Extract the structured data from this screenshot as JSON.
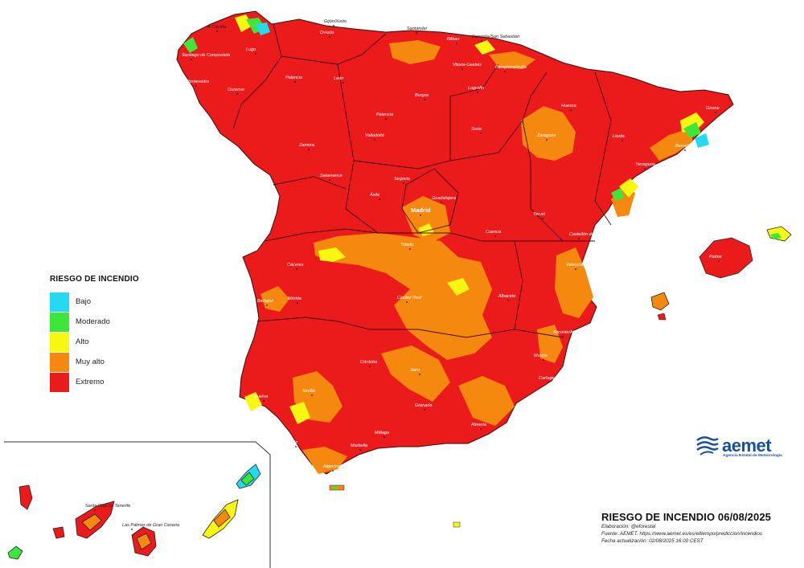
{
  "legend": {
    "title": "RIESGO DE INCENDIO",
    "levels": [
      {
        "label": "Bajo",
        "color": "#25d9f0"
      },
      {
        "label": "Moderado",
        "color": "#3ee63a"
      },
      {
        "label": "Alto",
        "color": "#f7f711"
      },
      {
        "label": "Muy alto",
        "color": "#f5890f"
      },
      {
        "label": "Extremo",
        "color": "#ec1b1b"
      }
    ]
  },
  "footer": {
    "title": "RIESGO DE INCENDIO 06/08/2025",
    "elaboracion": "Elaboración: @eforestal",
    "fuente": "Fuente: AEMET. https://www.aemet.es/es/eltiempo/prediccion/incendios",
    "actualizacion": "Fecha actualización: 02/08/2025 16:00 CEST"
  },
  "logo": {
    "name": "aemet",
    "subtitle": "Agencia Estatal de Meteorología",
    "icon": "aemet-logo-icon"
  },
  "cities": {
    "a_coruna": "A Coruña",
    "gijon": "Gijón/Xixón",
    "oviedo": "Oviedo",
    "santander": "Santander",
    "bilbao": "Bilbao",
    "donostia": "Donostia/San Sebastián",
    "santiago": "Santiago de Compostela",
    "lugo": "Lugo",
    "pontevedra": "Pontevedra",
    "ourense": "Ourense",
    "leon": "León",
    "palencia": "Palencia",
    "burgos": "Burgos",
    "vitoria": "Vitoria-Gasteiz",
    "logrono": "Logroño",
    "pamplona": "Pamplona/Iruña",
    "huesca": "Huesca",
    "girona": "Girona",
    "zaragoza": "Zaragoza",
    "lleida": "Lleida",
    "barcelona": "Barcelona",
    "tarragona": "Tarragona",
    "zamora": "Zamora",
    "valladolid": "Valladolid",
    "soria": "Soria",
    "salamanca": "Salamanca",
    "segovia": "Segovia",
    "avila": "Ávila",
    "guadalajara": "Guadalajara",
    "madrid": "Madrid",
    "teruel": "Teruel",
    "castellon": "Castellón de la Plana",
    "palma": "Palma",
    "caceres": "Cáceres",
    "toledo": "Toledo",
    "cuenca": "Cuenca",
    "valencia": "Valencia",
    "badajoz": "Badajoz",
    "merida": "Mérida",
    "ciudad_real": "Ciudad Real",
    "albacete": "Albacete",
    "alicante": "Alicante/Alacant",
    "murcia": "Murcia",
    "cartagena": "Cartagena",
    "cordoba": "Córdoba",
    "jaen": "Jaén",
    "huelva": "Huelva",
    "sevilla": "Sevilla",
    "granada": "Granada",
    "almeria": "Almería",
    "cadiz": "Cádiz",
    "malaga": "Málaga",
    "algeciras": "Algeciras",
    "marbella": "Marbella",
    "zamora2": "Zamora",
    "santa_cruz": "Santa Cruz de Tenerife",
    "las_palmas": "Las Palmas de Gran Canaria",
    "orense": "Ourense"
  }
}
